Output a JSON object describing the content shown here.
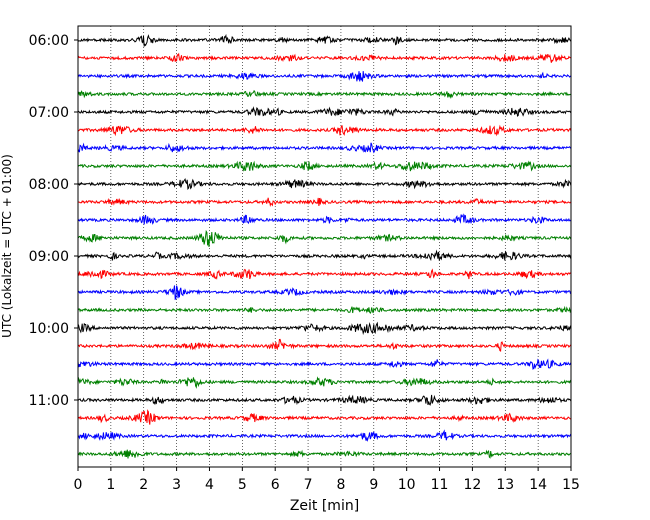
{
  "chart_data": {
    "type": "line",
    "title": "",
    "xlabel": "Zeit  [min]",
    "ylabel": "UTC (Lokalzeit = UTC + 01:00)",
    "xlim": [
      0,
      15
    ],
    "x_ticks": [
      0,
      1,
      2,
      3,
      4,
      5,
      6,
      7,
      8,
      9,
      10,
      11,
      12,
      13,
      14,
      15
    ],
    "y_tick_labels": [
      "06:00",
      "07:00",
      "08:00",
      "09:00",
      "10:00",
      "11:00"
    ],
    "grid": "vertical dotted lines at each minute",
    "trace_minutes": 15,
    "trace_colors": [
      "#000000",
      "#ff0000",
      "#0000ff",
      "#008000"
    ],
    "traces": [
      {
        "start": "06:00"
      },
      {
        "start": "06:15"
      },
      {
        "start": "06:30"
      },
      {
        "start": "06:45"
      },
      {
        "start": "07:00"
      },
      {
        "start": "07:15"
      },
      {
        "start": "07:30"
      },
      {
        "start": "07:45"
      },
      {
        "start": "08:00"
      },
      {
        "start": "08:15"
      },
      {
        "start": "08:30"
      },
      {
        "start": "08:45"
      },
      {
        "start": "09:00"
      },
      {
        "start": "09:15"
      },
      {
        "start": "09:30"
      },
      {
        "start": "09:45"
      },
      {
        "start": "10:00"
      },
      {
        "start": "10:15"
      },
      {
        "start": "10:30"
      },
      {
        "start": "10:45"
      },
      {
        "start": "11:00"
      },
      {
        "start": "11:15"
      },
      {
        "start": "11:30"
      },
      {
        "start": "11:45"
      }
    ]
  }
}
